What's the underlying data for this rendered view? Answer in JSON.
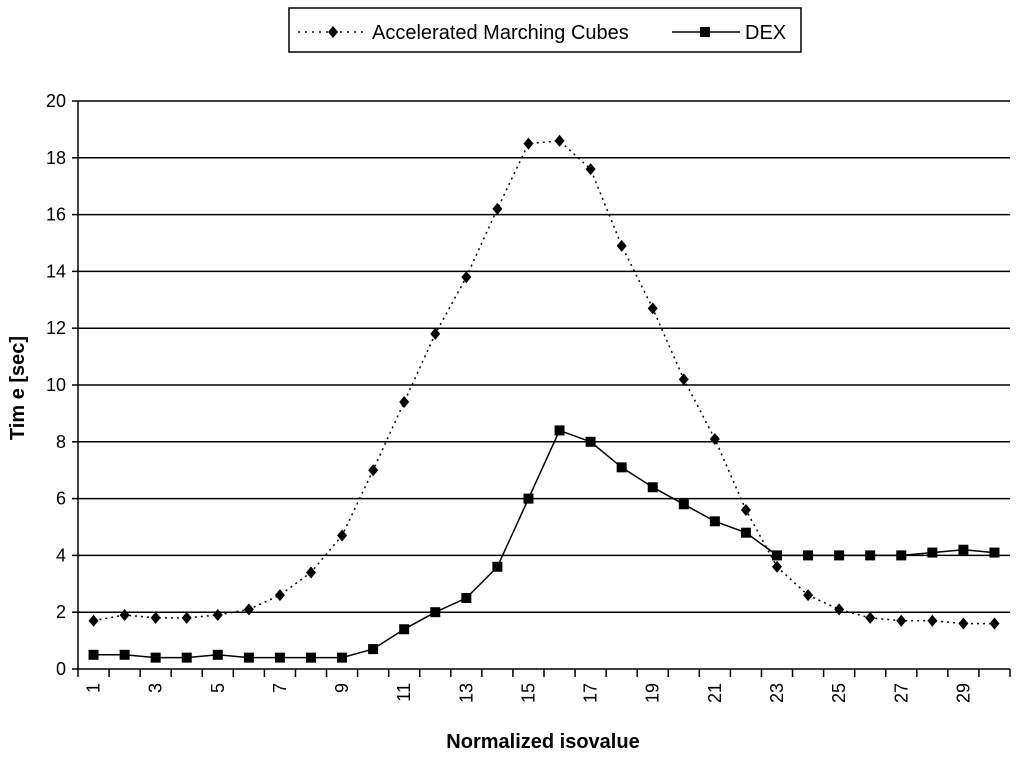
{
  "chart_data": {
    "type": "line",
    "title": "",
    "xlabel": "Normalized isovalue",
    "ylabel": "Tim e [sec]",
    "ylim": [
      0,
      20
    ],
    "yticks": [
      0,
      2,
      4,
      6,
      8,
      10,
      12,
      14,
      16,
      18,
      20
    ],
    "x": [
      1,
      2,
      3,
      4,
      5,
      6,
      7,
      8,
      9,
      10,
      11,
      12,
      13,
      14,
      15,
      16,
      17,
      18,
      19,
      20,
      21,
      22,
      23,
      24,
      25,
      26,
      27,
      28,
      29,
      30
    ],
    "xtick_labels": [
      "1",
      "3",
      "5",
      "7",
      "9",
      "11",
      "13",
      "15",
      "17",
      "19",
      "21",
      "23",
      "25",
      "27",
      "29"
    ],
    "grid": "horizontal",
    "legend_position": "top",
    "colors": {
      "line": "#000000",
      "grid": "#000000",
      "background": "#ffffff"
    },
    "series": [
      {
        "name": "Accelerated Marching Cubes",
        "marker": "diamond",
        "line_style": "dotted",
        "values": [
          1.7,
          1.9,
          1.8,
          1.8,
          1.9,
          2.1,
          2.6,
          3.4,
          4.7,
          7.0,
          9.4,
          11.8,
          13.8,
          16.2,
          18.5,
          18.6,
          17.6,
          14.9,
          12.7,
          10.2,
          8.1,
          5.6,
          3.6,
          2.6,
          2.1,
          1.8,
          1.7,
          1.7,
          1.6,
          1.6
        ]
      },
      {
        "name": "DEX",
        "marker": "square",
        "line_style": "solid",
        "values": [
          0.5,
          0.5,
          0.4,
          0.4,
          0.5,
          0.4,
          0.4,
          0.4,
          0.4,
          0.7,
          1.4,
          2.0,
          2.5,
          3.6,
          6.0,
          8.4,
          8.0,
          7.1,
          6.4,
          5.8,
          5.2,
          4.8,
          4.0,
          4.0,
          4.0,
          4.0,
          4.0,
          4.1,
          4.2,
          4.1
        ]
      }
    ]
  }
}
